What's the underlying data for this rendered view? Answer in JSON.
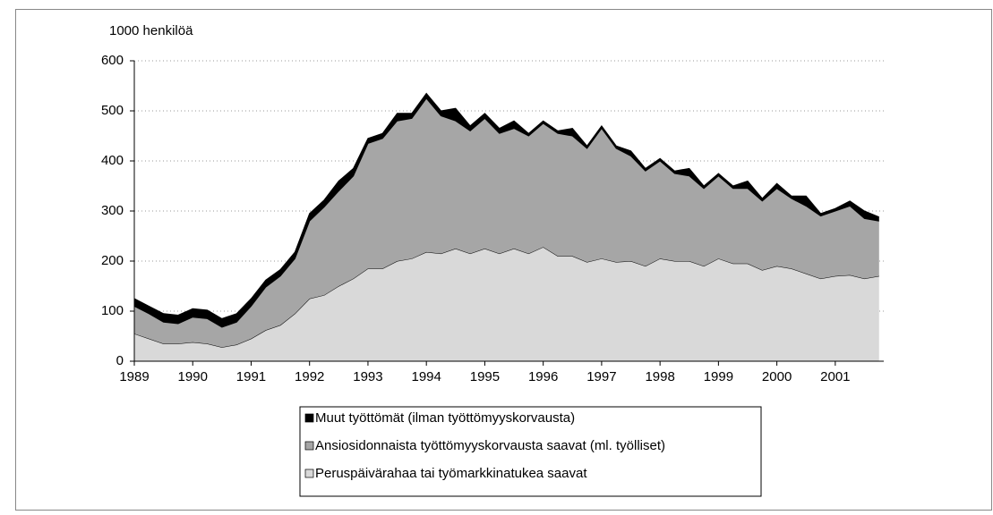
{
  "chart_data": {
    "type": "stacked-area",
    "y_label": "1000 henkilöä",
    "x": [
      1989,
      1989.25,
      1989.5,
      1989.75,
      1990,
      1990.25,
      1990.5,
      1990.75,
      1991,
      1991.25,
      1991.5,
      1991.75,
      1992,
      1992.25,
      1992.5,
      1992.75,
      1993,
      1993.25,
      1993.5,
      1993.75,
      1994,
      1994.25,
      1994.5,
      1994.75,
      1995,
      1995.25,
      1995.5,
      1995.75,
      1996,
      1996.25,
      1996.5,
      1996.75,
      1997,
      1997.25,
      1997.5,
      1997.75,
      1998,
      1998.25,
      1998.5,
      1998.75,
      1999,
      1999.25,
      1999.5,
      1999.75,
      2000,
      2000.25,
      2000.5,
      2000.75,
      2001,
      2001.25,
      2001.5,
      2001.75
    ],
    "series": [
      {
        "name": "Peruspäivärahaa tai työmarkkinatukea saavat",
        "color": "#d9d9d9",
        "values": [
          55,
          45,
          35,
          35,
          38,
          35,
          28,
          33,
          45,
          62,
          72,
          95,
          125,
          132,
          150,
          165,
          185,
          185,
          200,
          205,
          218,
          215,
          225,
          215,
          225,
          215,
          225,
          215,
          228,
          210,
          210,
          198,
          205,
          198,
          200,
          190,
          205,
          200,
          200,
          190,
          205,
          195,
          195,
          182,
          190,
          185,
          175,
          165,
          170,
          172,
          165,
          170
        ]
      },
      {
        "name": "Ansiosidonnaista työttömyyskorvausta saavat (ml. työlliset)",
        "color": "#a6a6a6",
        "values": [
          55,
          50,
          43,
          40,
          50,
          50,
          40,
          45,
          65,
          86,
          98,
          110,
          155,
          176,
          190,
          205,
          250,
          260,
          280,
          280,
          307,
          275,
          255,
          245,
          260,
          240,
          240,
          235,
          247,
          245,
          240,
          227,
          260,
          227,
          210,
          190,
          195,
          175,
          170,
          155,
          165,
          150,
          150,
          138,
          155,
          140,
          135,
          125,
          130,
          138,
          120,
          110
        ]
      },
      {
        "name": "Muut työttömät (ilman työttömyyskorvausta)",
        "color": "#000000",
        "values": [
          15,
          15,
          17,
          17,
          17,
          17,
          17,
          17,
          15,
          14,
          13,
          13,
          15,
          14,
          20,
          15,
          10,
          10,
          15,
          10,
          10,
          10,
          25,
          10,
          10,
          10,
          15,
          5,
          5,
          5,
          15,
          5,
          5,
          5,
          10,
          5,
          5,
          5,
          15,
          5,
          5,
          5,
          15,
          5,
          10,
          5,
          20,
          5,
          5,
          10,
          15,
          8
        ]
      }
    ],
    "xlim": [
      1989,
      2001.83
    ],
    "xticks": [
      1989,
      1990,
      1991,
      1992,
      1993,
      1994,
      1995,
      1996,
      1997,
      1998,
      1999,
      2000,
      2001
    ],
    "ylim": [
      0,
      600
    ],
    "yticks": [
      0,
      100,
      200,
      300,
      400,
      500,
      600
    ],
    "grid": true,
    "legend": "bottom"
  }
}
